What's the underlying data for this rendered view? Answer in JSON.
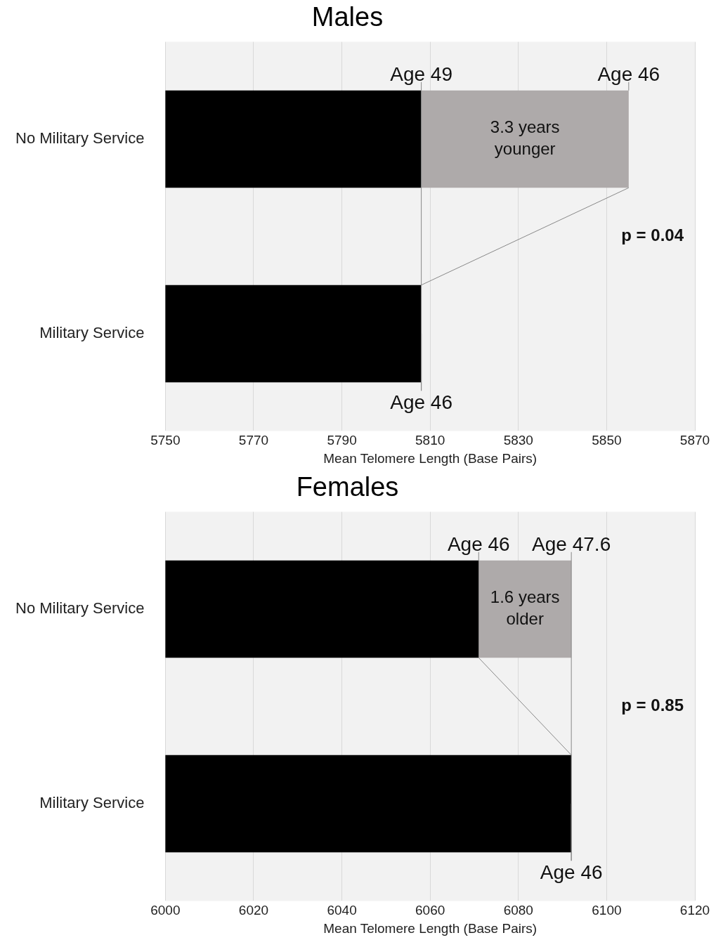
{
  "chart_data": [
    {
      "type": "bar",
      "orientation": "horizontal",
      "stacked": true,
      "title": "Males",
      "xlabel": "Mean Telomere Length (Base Pairs)",
      "categories": [
        "No Military Service",
        "Military Service"
      ],
      "series": [
        {
          "color": "#000000",
          "values": [
            5808,
            5808
          ]
        },
        {
          "color": "#aeaaaa",
          "base": [
            5808,
            null
          ],
          "values": [
            47,
            null
          ]
        }
      ],
      "xlim": [
        5750,
        5870
      ],
      "xticks": [
        5750,
        5770,
        5790,
        5810,
        5830,
        5850,
        5870
      ],
      "grid": "x",
      "legend": false,
      "annotations": [
        {
          "text": "Age 49",
          "x": 5808,
          "y": "No Military Service"
        },
        {
          "text": "Age 46",
          "x": 5855,
          "y": "No Military Service"
        },
        "3.3 years\nyounger",
        {
          "text": "Age 46",
          "x": 5808,
          "y": "Military Service"
        },
        "p = 0.04"
      ]
    },
    {
      "type": "bar",
      "orientation": "horizontal",
      "stacked": true,
      "title": "Females",
      "xlabel": "Mean Telomere Length (Base Pairs)",
      "categories": [
        "No Military Service",
        "Military Service"
      ],
      "series": [
        {
          "color": "#000000",
          "values": [
            6071,
            6092
          ]
        },
        {
          "color": "#aeaaaa",
          "base": [
            6071,
            null
          ],
          "values": [
            21,
            null
          ]
        }
      ],
      "xlim": [
        6000,
        6120
      ],
      "xticks": [
        6000,
        6020,
        6040,
        6060,
        6080,
        6100,
        6120
      ],
      "grid": "x",
      "legend": false,
      "annotations": [
        {
          "text": "Age 46",
          "x": 6071,
          "y": "No Military Service"
        },
        {
          "text": "Age 47.6",
          "x": 6092,
          "y": "No Military Service"
        },
        "1.6 years\nolder",
        {
          "text": "Age 46",
          "x": 6092,
          "y": "Military Service"
        },
        "p = 0.85"
      ]
    }
  ]
}
